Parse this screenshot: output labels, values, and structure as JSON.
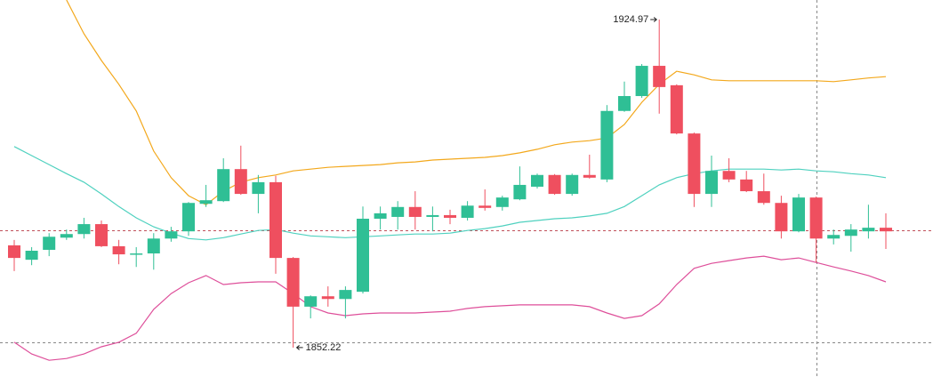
{
  "chart_data": {
    "type": "candlestick",
    "ylim": [
      1845.7,
      1929.3
    ],
    "up_color": "#2fbf95",
    "down_color": "#ef4f5f",
    "open": [
      1874.9,
      1871.7,
      1873.9,
      1876.6,
      1877.4,
      1879.6,
      1874.7,
      1872.9,
      1873.1,
      1876.4,
      1878.0,
      1884.1,
      1884.7,
      1891.8,
      1886.3,
      1888.9,
      1872.1,
      1861.3,
      1863.6,
      1863.0,
      1864.6,
      1880.8,
      1881.2,
      1883.4,
      1881.2,
      1881.6,
      1881.0,
      1883.7,
      1883.4,
      1885.1,
      1887.9,
      1890.5,
      1886.3,
      1890.5,
      1889.5,
      1904.7,
      1908.0,
      1914.7,
      1910.4,
      1899.7,
      1886.3,
      1891.4,
      1889.5,
      1886.9,
      1884.3,
      1878.0,
      1885.5,
      1876.4,
      1877.0,
      1878.0,
      1878.8
    ],
    "high": [
      1876.1,
      1874.5,
      1877.6,
      1878.4,
      1881.0,
      1880.4,
      1876.1,
      1874.5,
      1877.6,
      1879.0,
      1884.5,
      1888.3,
      1894.2,
      1897.0,
      1890.5,
      1890.3,
      1872.3,
      1863.8,
      1865.8,
      1865.8,
      1883.5,
      1883.5,
      1884.7,
      1886.9,
      1883.5,
      1882.8,
      1884.7,
      1887.3,
      1885.9,
      1892.4,
      1890.8,
      1890.7,
      1890.8,
      1895.0,
      1906.0,
      1911.2,
      1915.1,
      1924.97,
      1910.6,
      1899.9,
      1894.8,
      1894.2,
      1891.4,
      1890.8,
      1885.9,
      1886.3,
      1885.7,
      1878.4,
      1879.6,
      1883.9,
      1882.0
    ],
    "low": [
      1869.2,
      1870.5,
      1872.5,
      1876.1,
      1876.4,
      1874.5,
      1870.7,
      1870.1,
      1869.5,
      1875.7,
      1877.0,
      1883.4,
      1884.5,
      1886.1,
      1882.0,
      1868.6,
      1852.22,
      1858.7,
      1861.3,
      1858.7,
      1864.2,
      1878.4,
      1878.4,
      1878.4,
      1878.0,
      1879.6,
      1880.4,
      1882.6,
      1882.6,
      1884.9,
      1887.5,
      1886.1,
      1885.9,
      1889.7,
      1888.9,
      1904.5,
      1907.6,
      1904.1,
      1899.5,
      1883.4,
      1883.4,
      1888.9,
      1886.7,
      1883.9,
      1876.4,
      1877.8,
      1871.1,
      1875.1,
      1873.5,
      1876.4,
      1874.1
    ],
    "close": [
      1872.1,
      1873.7,
      1876.8,
      1877.4,
      1879.6,
      1874.7,
      1872.9,
      1873.1,
      1876.4,
      1878.0,
      1884.3,
      1884.9,
      1891.8,
      1886.3,
      1888.9,
      1872.1,
      1861.3,
      1863.6,
      1863.0,
      1865.0,
      1880.8,
      1882.0,
      1883.4,
      1881.2,
      1881.6,
      1881.0,
      1883.7,
      1883.2,
      1885.5,
      1888.3,
      1890.5,
      1886.3,
      1890.5,
      1889.9,
      1904.7,
      1908.0,
      1914.7,
      1910.0,
      1899.7,
      1886.3,
      1891.4,
      1889.5,
      1886.9,
      1884.3,
      1878.0,
      1885.5,
      1876.4,
      1877.2,
      1878.4,
      1878.8,
      1878.0
    ],
    "bands": [
      {
        "color": "#f3a81c",
        "values": [
          null,
          null,
          null,
          1929.3,
          1921.8,
          1915.9,
          1910.6,
          1904.7,
          1895.8,
          1889.9,
          1885.9,
          1883.9,
          1886.9,
          1888.9,
          1889.9,
          1890.5,
          1891.4,
          1891.8,
          1892.2,
          1892.4,
          1892.6,
          1892.8,
          1893.2,
          1893.4,
          1893.8,
          1894.0,
          1894.2,
          1894.4,
          1894.8,
          1895.4,
          1896.2,
          1897.2,
          1897.8,
          1898.1,
          1898.7,
          1901.7,
          1906.6,
          1910.6,
          1913.5,
          1912.7,
          1911.6,
          1911.4,
          1911.4,
          1911.4,
          1911.4,
          1911.4,
          1911.4,
          1911.2,
          1911.6,
          1912.0,
          1912.3
        ]
      },
      {
        "color": "#4fd1bf",
        "values": [
          1896.8,
          1894.8,
          1892.8,
          1890.8,
          1888.9,
          1886.3,
          1883.5,
          1881.0,
          1879.0,
          1877.6,
          1876.4,
          1876.1,
          1876.6,
          1877.4,
          1878.2,
          1878.4,
          1877.6,
          1877.0,
          1876.8,
          1876.6,
          1876.8,
          1877.0,
          1877.2,
          1877.4,
          1877.4,
          1877.6,
          1878.2,
          1878.6,
          1879.2,
          1880.0,
          1880.4,
          1880.8,
          1881.0,
          1881.4,
          1882.0,
          1883.5,
          1885.9,
          1888.3,
          1889.9,
          1890.8,
          1891.4,
          1891.8,
          1891.8,
          1891.8,
          1891.6,
          1891.8,
          1891.4,
          1891.2,
          1890.8,
          1890.5,
          1889.9
        ]
      },
      {
        "color": "#de4f9a",
        "values": [
          1853.4,
          1850.8,
          1849.4,
          1849.8,
          1850.8,
          1852.4,
          1853.4,
          1855.4,
          1860.7,
          1864.2,
          1866.6,
          1868.2,
          1866.2,
          1866.6,
          1866.8,
          1866.8,
          1864.2,
          1861.3,
          1859.9,
          1859.3,
          1859.7,
          1859.9,
          1859.9,
          1859.9,
          1860.1,
          1860.3,
          1860.9,
          1861.3,
          1861.5,
          1861.7,
          1861.7,
          1861.7,
          1861.7,
          1861.3,
          1859.9,
          1858.7,
          1859.3,
          1861.9,
          1866.2,
          1869.8,
          1870.9,
          1871.5,
          1872.1,
          1872.5,
          1871.7,
          1872.1,
          1871.1,
          1870.1,
          1869.2,
          1868.2,
          1866.8
        ]
      }
    ]
  }
}
